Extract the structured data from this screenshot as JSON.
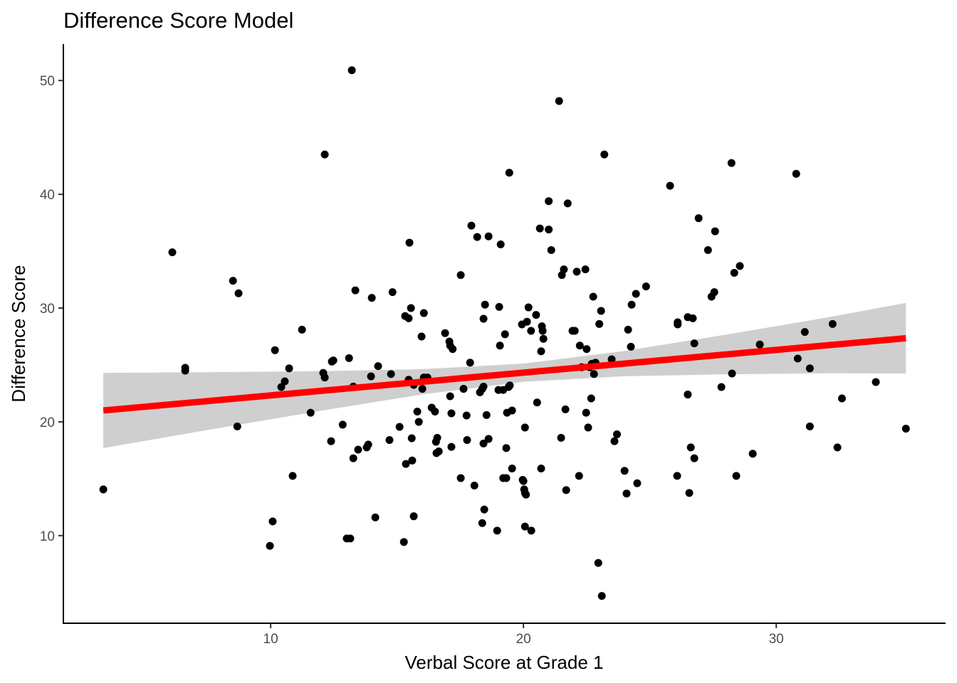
{
  "chart_data": {
    "type": "scatter",
    "title": "Difference Score Model",
    "xlabel": "Verbal Score at Grade 1",
    "ylabel": "Difference Score",
    "xlim": [
      1.8,
      36.7
    ],
    "ylim": [
      2.3,
      53.2
    ],
    "xticks": [
      10,
      20,
      30
    ],
    "yticks": [
      10,
      20,
      30,
      40,
      50
    ],
    "grid": false,
    "legend": "none",
    "colors": {
      "points": "#000000",
      "fit_line": "#ff0000",
      "ribbon": "#cccccc"
    },
    "points": [
      [
        3.38,
        14.06
      ],
      [
        6.11,
        34.9
      ],
      [
        6.62,
        24.75
      ],
      [
        6.62,
        24.5
      ],
      [
        8.51,
        32.4
      ],
      [
        8.73,
        31.3
      ],
      [
        8.68,
        19.6
      ],
      [
        9.97,
        9.1
      ],
      [
        10.08,
        11.25
      ],
      [
        10.17,
        26.3
      ],
      [
        10.42,
        23.06
      ],
      [
        10.56,
        23.56
      ],
      [
        10.73,
        24.7
      ],
      [
        10.87,
        15.25
      ],
      [
        11.24,
        28.1
      ],
      [
        11.58,
        20.8
      ],
      [
        12.14,
        43.5
      ],
      [
        12.08,
        24.3
      ],
      [
        12.14,
        23.9
      ],
      [
        12.39,
        18.3
      ],
      [
        12.42,
        25.3
      ],
      [
        12.48,
        25.4
      ],
      [
        12.85,
        19.75
      ],
      [
        13.01,
        9.75
      ],
      [
        13.15,
        9.75
      ],
      [
        13.1,
        25.6
      ],
      [
        13.21,
        50.9
      ],
      [
        13.27,
        16.8
      ],
      [
        13.27,
        23.1
      ],
      [
        13.35,
        31.56
      ],
      [
        13.46,
        17.56
      ],
      [
        13.8,
        17.75
      ],
      [
        13.86,
        18.0
      ],
      [
        14.0,
        30.9
      ],
      [
        13.97,
        24.0
      ],
      [
        14.14,
        11.6
      ],
      [
        14.25,
        24.9
      ],
      [
        14.7,
        18.4
      ],
      [
        14.76,
        24.2
      ],
      [
        14.82,
        31.4
      ],
      [
        15.1,
        19.56
      ],
      [
        15.27,
        9.44
      ],
      [
        15.35,
        16.3
      ],
      [
        15.32,
        29.3
      ],
      [
        15.46,
        29.1
      ],
      [
        15.46,
        23.7
      ],
      [
        15.49,
        35.75
      ],
      [
        15.55,
        30.0
      ],
      [
        15.6,
        16.6
      ],
      [
        15.58,
        18.56
      ],
      [
        15.66,
        11.7
      ],
      [
        15.66,
        23.25
      ],
      [
        15.8,
        20.9
      ],
      [
        15.86,
        20.0
      ],
      [
        15.97,
        27.5
      ],
      [
        16.0,
        22.9
      ],
      [
        16.06,
        29.56
      ],
      [
        16.06,
        23.9
      ],
      [
        16.2,
        23.9
      ],
      [
        16.37,
        21.25
      ],
      [
        16.5,
        20.9
      ],
      [
        16.54,
        18.25
      ],
      [
        16.59,
        18.6
      ],
      [
        16.56,
        17.25
      ],
      [
        16.65,
        17.4
      ],
      [
        16.9,
        27.8
      ],
      [
        17.07,
        27.06
      ],
      [
        17.1,
        26.7
      ],
      [
        17.2,
        26.4
      ],
      [
        17.1,
        22.25
      ],
      [
        17.15,
        20.75
      ],
      [
        17.15,
        17.8
      ],
      [
        17.52,
        32.9
      ],
      [
        17.52,
        15.06
      ],
      [
        17.63,
        22.9
      ],
      [
        17.75,
        20.56
      ],
      [
        17.77,
        18.4
      ],
      [
        17.89,
        25.2
      ],
      [
        17.94,
        37.25
      ],
      [
        18.06,
        14.4
      ],
      [
        18.17,
        36.25
      ],
      [
        18.28,
        22.6
      ],
      [
        18.37,
        22.9
      ],
      [
        18.42,
        23.1
      ],
      [
        18.42,
        18.1
      ],
      [
        18.37,
        11.1
      ],
      [
        18.45,
        12.3
      ],
      [
        18.42,
        29.06
      ],
      [
        18.48,
        30.3
      ],
      [
        18.54,
        20.6
      ],
      [
        18.62,
        18.5
      ],
      [
        18.62,
        36.3
      ],
      [
        18.96,
        10.44
      ],
      [
        19.01,
        22.8
      ],
      [
        19.07,
        26.7
      ],
      [
        19.04,
        30.1
      ],
      [
        19.1,
        35.6
      ],
      [
        19.2,
        22.8
      ],
      [
        19.27,
        27.7
      ],
      [
        19.2,
        15.06
      ],
      [
        19.32,
        15.06
      ],
      [
        19.32,
        17.7
      ],
      [
        19.35,
        20.8
      ],
      [
        19.41,
        23.06
      ],
      [
        19.44,
        41.9
      ],
      [
        19.46,
        23.2
      ],
      [
        19.55,
        21.0
      ],
      [
        19.55,
        15.9
      ],
      [
        19.94,
        28.56
      ],
      [
        19.97,
        14.9
      ],
      [
        20.0,
        14.8
      ],
      [
        20.03,
        14.06
      ],
      [
        20.06,
        13.75
      ],
      [
        20.06,
        19.5
      ],
      [
        20.06,
        10.8
      ],
      [
        20.1,
        13.6
      ],
      [
        20.14,
        28.8
      ],
      [
        20.2,
        30.06
      ],
      [
        20.31,
        10.44
      ],
      [
        20.3,
        28.0
      ],
      [
        20.5,
        29.4
      ],
      [
        20.54,
        21.7
      ],
      [
        20.65,
        37.0
      ],
      [
        20.7,
        26.2
      ],
      [
        20.7,
        15.9
      ],
      [
        20.73,
        28.4
      ],
      [
        20.76,
        28.0
      ],
      [
        20.79,
        27.3
      ],
      [
        21.0,
        39.4
      ],
      [
        21.0,
        36.9
      ],
      [
        21.1,
        35.1
      ],
      [
        21.41,
        48.2
      ],
      [
        21.49,
        18.6
      ],
      [
        21.52,
        32.9
      ],
      [
        21.6,
        33.4
      ],
      [
        21.66,
        21.1
      ],
      [
        21.69,
        14.0
      ],
      [
        21.75,
        39.2
      ],
      [
        21.94,
        28.0
      ],
      [
        22.03,
        28.0
      ],
      [
        22.11,
        33.2
      ],
      [
        22.2,
        15.25
      ],
      [
        22.23,
        26.7
      ],
      [
        22.3,
        24.8
      ],
      [
        22.45,
        33.4
      ],
      [
        22.48,
        20.8
      ],
      [
        22.5,
        26.4
      ],
      [
        22.56,
        19.5
      ],
      [
        22.62,
        24.8
      ],
      [
        22.68,
        22.06
      ],
      [
        22.7,
        25.1
      ],
      [
        22.76,
        31.0
      ],
      [
        22.79,
        24.2
      ],
      [
        22.85,
        25.2
      ],
      [
        22.96,
        7.6
      ],
      [
        23.0,
        28.6
      ],
      [
        23.07,
        29.75
      ],
      [
        23.1,
        4.7
      ],
      [
        23.2,
        43.5
      ],
      [
        23.49,
        25.5
      ],
      [
        23.6,
        18.3
      ],
      [
        23.7,
        18.9
      ],
      [
        24.0,
        15.7
      ],
      [
        24.08,
        13.7
      ],
      [
        24.14,
        28.1
      ],
      [
        24.25,
        26.6
      ],
      [
        24.28,
        30.3
      ],
      [
        24.45,
        31.25
      ],
      [
        24.5,
        14.6
      ],
      [
        24.85,
        31.9
      ],
      [
        25.8,
        40.75
      ],
      [
        26.08,
        15.25
      ],
      [
        26.1,
        28.75
      ],
      [
        26.1,
        28.56
      ],
      [
        26.5,
        29.2
      ],
      [
        26.5,
        22.4
      ],
      [
        26.56,
        13.75
      ],
      [
        26.62,
        17.75
      ],
      [
        26.7,
        29.1
      ],
      [
        26.76,
        16.8
      ],
      [
        26.76,
        26.9
      ],
      [
        26.93,
        37.9
      ],
      [
        27.3,
        35.1
      ],
      [
        27.44,
        31.0
      ],
      [
        27.55,
        31.4
      ],
      [
        27.58,
        36.75
      ],
      [
        27.83,
        23.06
      ],
      [
        28.23,
        42.75
      ],
      [
        28.25,
        24.25
      ],
      [
        28.34,
        33.1
      ],
      [
        28.42,
        15.25
      ],
      [
        28.56,
        33.7
      ],
      [
        29.07,
        17.2
      ],
      [
        29.35,
        26.8
      ],
      [
        30.79,
        41.8
      ],
      [
        30.85,
        25.56
      ],
      [
        31.13,
        27.9
      ],
      [
        31.33,
        24.7
      ],
      [
        31.33,
        19.6
      ],
      [
        32.23,
        28.6
      ],
      [
        32.42,
        17.75
      ],
      [
        32.6,
        22.06
      ],
      [
        33.94,
        23.5
      ],
      [
        35.13,
        19.4
      ]
    ],
    "fit_line": {
      "x": [
        3.38,
        35.13
      ],
      "y": [
        21.0,
        27.35
      ]
    },
    "confidence_band": {
      "x": [
        3.38,
        8,
        12,
        16,
        20,
        24,
        28,
        32,
        35.13
      ],
      "lower": [
        17.7,
        19.47,
        20.98,
        22.41,
        23.52,
        24.01,
        24.18,
        24.27,
        24.25
      ],
      "upper": [
        24.3,
        24.37,
        24.46,
        24.63,
        25.12,
        26.23,
        27.66,
        29.17,
        30.45
      ]
    }
  }
}
